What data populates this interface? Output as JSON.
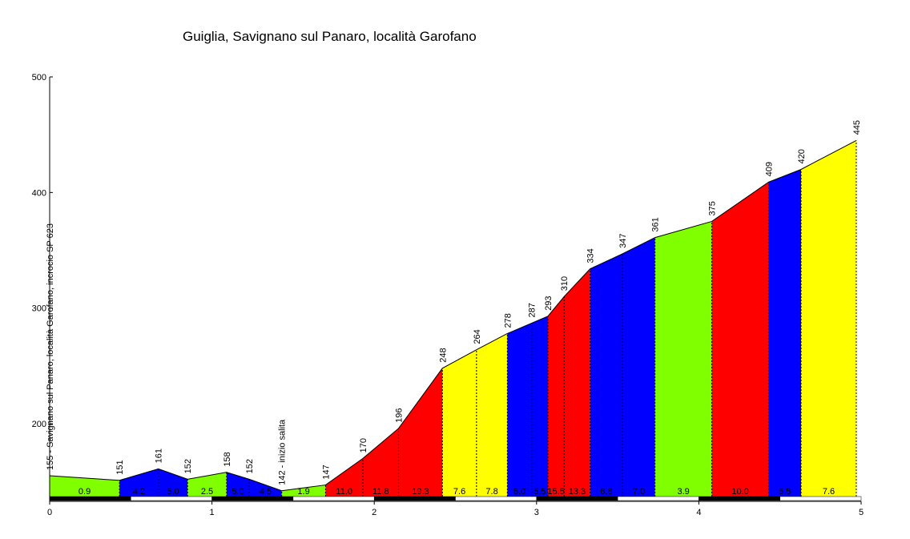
{
  "chart_data": {
    "type": "area",
    "title": "Guiglia, Savignano sul Panaro, località Garofano",
    "xlabel": "",
    "ylabel": "",
    "xlim": [
      0,
      5
    ],
    "ylim": [
      137,
      500
    ],
    "x_ticks": [
      "0",
      "1",
      "2",
      "3",
      "4",
      "5"
    ],
    "y_ticks": [
      "200",
      "300",
      "400",
      "500"
    ],
    "profile": [
      {
        "x": 0.0,
        "y": 155,
        "label": "155 - Savignano sul Panaro, località Garofano, incrocio SP 623"
      },
      {
        "x": 0.43,
        "y": 151,
        "label": "151"
      },
      {
        "x": 0.67,
        "y": 161,
        "label": "161"
      },
      {
        "x": 0.85,
        "y": 152,
        "label": "152"
      },
      {
        "x": 1.09,
        "y": 158,
        "label": "158"
      },
      {
        "x": 1.23,
        "y": 152,
        "label": "152"
      },
      {
        "x": 1.43,
        "y": 142,
        "label": "142 - inizio salita"
      },
      {
        "x": 1.7,
        "y": 147,
        "label": "147"
      },
      {
        "x": 1.93,
        "y": 170,
        "label": "170"
      },
      {
        "x": 2.15,
        "y": 196,
        "label": "196"
      },
      {
        "x": 2.42,
        "y": 248,
        "label": "248"
      },
      {
        "x": 2.63,
        "y": 264,
        "label": "264"
      },
      {
        "x": 2.82,
        "y": 278,
        "label": "278"
      },
      {
        "x": 2.97,
        "y": 287,
        "label": "287"
      },
      {
        "x": 3.07,
        "y": 293,
        "label": "293"
      },
      {
        "x": 3.17,
        "y": 310,
        "label": "310"
      },
      {
        "x": 3.33,
        "y": 334,
        "label": "334"
      },
      {
        "x": 3.53,
        "y": 347,
        "label": "347"
      },
      {
        "x": 3.73,
        "y": 361,
        "label": "361"
      },
      {
        "x": 4.08,
        "y": 375,
        "label": "375"
      },
      {
        "x": 4.43,
        "y": 409,
        "label": "409"
      },
      {
        "x": 4.63,
        "y": 420,
        "label": "420"
      },
      {
        "x": 4.97,
        "y": 445,
        "label": "445"
      }
    ],
    "segments": [
      {
        "x0": 0.0,
        "x1": 0.43,
        "color": "#80ff00",
        "gradients": [
          {
            "x": 0.0,
            "g": "0.9"
          }
        ]
      },
      {
        "x0": 0.43,
        "x1": 0.85,
        "color": "#0000ff",
        "gradients": [
          {
            "x": 0.43,
            "g": "4.2"
          },
          {
            "x": 0.67,
            "g": "5.0"
          }
        ]
      },
      {
        "x0": 0.85,
        "x1": 1.09,
        "color": "#80ff00",
        "gradients": [
          {
            "x": 0.85,
            "g": "2.5"
          }
        ]
      },
      {
        "x0": 1.09,
        "x1": 1.43,
        "color": "#0000ff",
        "gradients": [
          {
            "x": 1.09,
            "g": "5.0"
          },
          {
            "x": 1.23,
            "g": "4.5"
          }
        ]
      },
      {
        "x0": 1.43,
        "x1": 1.7,
        "color": "#80ff00",
        "gradients": [
          {
            "x": 1.43,
            "g": "1.9"
          }
        ]
      },
      {
        "x0": 1.7,
        "x1": 2.42,
        "color": "#ff0000",
        "gradients": [
          {
            "x": 1.7,
            "g": "11.0"
          },
          {
            "x": 1.93,
            "g": "11.8"
          },
          {
            "x": 2.15,
            "g": "19.3"
          }
        ]
      },
      {
        "x0": 2.42,
        "x1": 2.82,
        "color": "#ffff00",
        "gradients": [
          {
            "x": 2.42,
            "g": "7.6"
          },
          {
            "x": 2.63,
            "g": "7.8"
          }
        ]
      },
      {
        "x0": 2.82,
        "x1": 3.07,
        "color": "#0000ff",
        "gradients": [
          {
            "x": 2.82,
            "g": "6.0"
          },
          {
            "x": 2.97,
            "g": "5.5"
          }
        ]
      },
      {
        "x0": 3.07,
        "x1": 3.33,
        "color": "#ff0000",
        "gradients": [
          {
            "x": 3.07,
            "g": "15.5"
          },
          {
            "x": 3.17,
            "g": "13.3"
          }
        ]
      },
      {
        "x0": 3.33,
        "x1": 3.73,
        "color": "#0000ff",
        "gradients": [
          {
            "x": 3.33,
            "g": "6.8"
          },
          {
            "x": 3.53,
            "g": "7.0"
          }
        ]
      },
      {
        "x0": 3.73,
        "x1": 4.08,
        "color": "#80ff00",
        "gradients": [
          {
            "x": 3.73,
            "g": "3.9"
          }
        ]
      },
      {
        "x0": 4.08,
        "x1": 4.43,
        "color": "#ff0000",
        "gradients": [
          {
            "x": 4.08,
            "g": "10.0"
          }
        ]
      },
      {
        "x0": 4.43,
        "x1": 4.63,
        "color": "#0000ff",
        "gradients": [
          {
            "x": 4.43,
            "g": "5.5"
          }
        ]
      },
      {
        "x0": 4.63,
        "x1": 4.97,
        "color": "#ffff00",
        "gradients": [
          {
            "x": 4.63,
            "g": "7.6"
          }
        ]
      }
    ],
    "grid": false
  }
}
